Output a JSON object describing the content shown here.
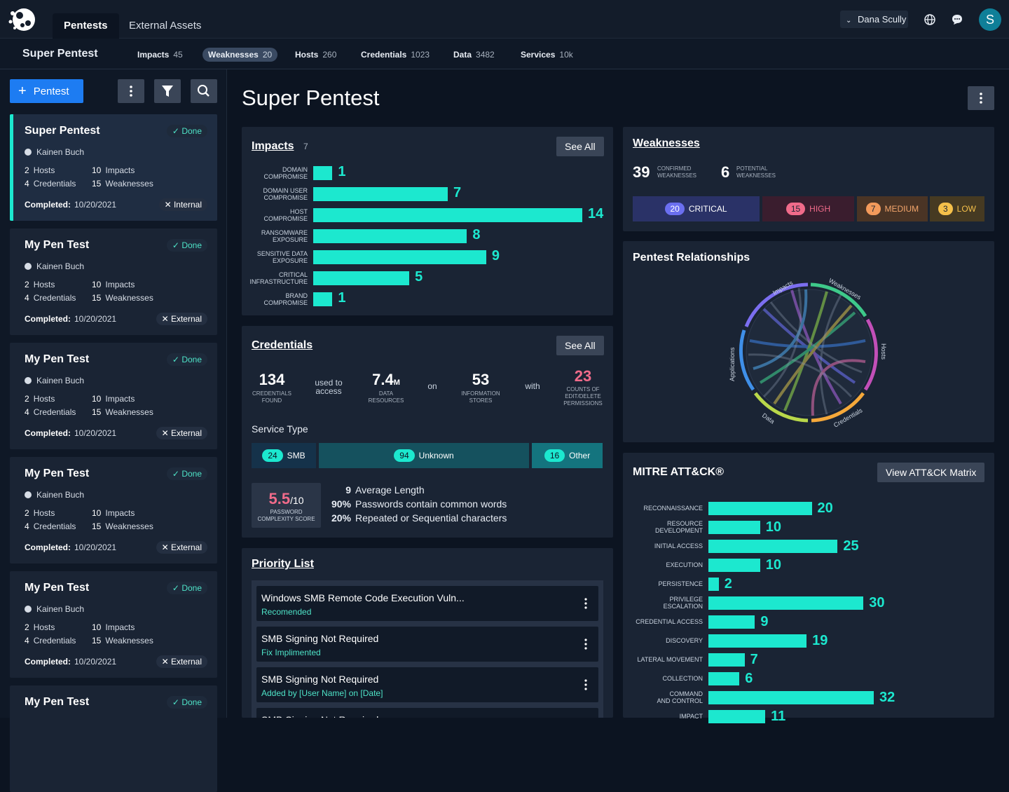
{
  "topbar": {
    "tabs": [
      {
        "label": "Pentests",
        "active": true
      },
      {
        "label": "External Assets",
        "active": false
      }
    ],
    "user": "Dana Scully",
    "avatar_initial": "S"
  },
  "subbar": {
    "title": "Super Pentest",
    "stats": [
      {
        "label": "Impacts",
        "value": "45"
      },
      {
        "label": "Weaknesses",
        "value": "20",
        "active": true
      },
      {
        "label": "Hosts",
        "value": "260"
      },
      {
        "label": "Credentials",
        "value": "1023"
      },
      {
        "label": "Data",
        "value": "3482"
      },
      {
        "label": "Services",
        "value": "10k"
      }
    ]
  },
  "sidebar": {
    "new_label": "Pentest",
    "cards": [
      {
        "title": "Super Pentest",
        "status": "Done",
        "owner": "Kainen Buch",
        "hosts": "2",
        "hosts_label": "Hosts",
        "impacts": "10",
        "impacts_label": "Impacts",
        "credentials": "4",
        "credentials_label": "Credentials",
        "weaknesses": "15",
        "weaknesses_label": "Weaknesses",
        "completed_label": "Completed:",
        "completed": "10/20/2021",
        "tag": "Internal"
      },
      {
        "title": "My Pen Test",
        "status": "Done",
        "owner": "Kainen Buch",
        "hosts": "2",
        "hosts_label": "Hosts",
        "impacts": "10",
        "impacts_label": "Impacts",
        "credentials": "4",
        "credentials_label": "Credentials",
        "weaknesses": "15",
        "weaknesses_label": "Weaknesses",
        "completed_label": "Completed:",
        "completed": "10/20/2021",
        "tag": "External"
      },
      {
        "title": "My Pen Test",
        "status": "Done",
        "owner": "Kainen Buch",
        "hosts": "2",
        "hosts_label": "Hosts",
        "impacts": "10",
        "impacts_label": "Impacts",
        "credentials": "4",
        "credentials_label": "Credentials",
        "weaknesses": "15",
        "weaknesses_label": "Weaknesses",
        "completed_label": "Completed:",
        "completed": "10/20/2021",
        "tag": "External"
      },
      {
        "title": "My Pen Test",
        "status": "Done",
        "owner": "Kainen Buch",
        "hosts": "2",
        "hosts_label": "Hosts",
        "impacts": "10",
        "impacts_label": "Impacts",
        "credentials": "4",
        "credentials_label": "Credentials",
        "weaknesses": "15",
        "weaknesses_label": "Weaknesses",
        "completed_label": "Completed:",
        "completed": "10/20/2021",
        "tag": "External"
      },
      {
        "title": "My Pen Test",
        "status": "Done",
        "owner": "Kainen Buch",
        "hosts": "2",
        "hosts_label": "Hosts",
        "impacts": "10",
        "impacts_label": "Impacts",
        "credentials": "4",
        "credentials_label": "Credentials",
        "weaknesses": "15",
        "weaknesses_label": "Weaknesses",
        "completed_label": "Completed:",
        "completed": "10/20/2021",
        "tag": "External"
      },
      {
        "title": "My Pen Test",
        "status": "Done"
      }
    ]
  },
  "main": {
    "title": "Super Pentest"
  },
  "impacts": {
    "title": "Impacts",
    "count": "7",
    "see_all": "See All",
    "max": 14,
    "items": [
      {
        "label": "DOMAIN\nCOMPROMISE",
        "value": 1
      },
      {
        "label": "DOMAIN USER\nCOMPROMISE",
        "value": 7
      },
      {
        "label": "HOST\nCOMPROMISE",
        "value": 14
      },
      {
        "label": "RANSOMWARE\nEXPOSURE",
        "value": 8
      },
      {
        "label": "SENSITIVE DATA\nEXPOSURE",
        "value": 9
      },
      {
        "label": "CRITICAL\nINFRASTRUCTURE",
        "value": 5
      },
      {
        "label": "BRAND\nCOMPROMISE",
        "value": 1
      }
    ]
  },
  "credentials": {
    "title": "Credentials",
    "see_all": "See All",
    "found": "134",
    "found_label": "CREDENTIALS\nFOUND",
    "used_to": "used to\naccess",
    "data": "7.4",
    "data_unit": "M",
    "data_label": "DATA\nRESOURCES",
    "on": "on",
    "stores": "53",
    "stores_label": "INFORMATION\nSTORES",
    "with": "with",
    "perms": "23",
    "perms_label": "COUNTS OF\nEDIT/DELETE\nPERMISSIONS",
    "service_type_label": "Service Type",
    "services": [
      {
        "count": "24",
        "label": "SMB"
      },
      {
        "count": "94",
        "label": "Unknown"
      },
      {
        "count": "16",
        "label": "Other"
      }
    ],
    "score": "5.5",
    "score_max": "/10",
    "score_label": "PASSWORD\nCOMPLEXITY SCORE",
    "pw_stats": [
      {
        "value": "9",
        "label": "Average Length"
      },
      {
        "value": "90%",
        "label": "Passwords contain common words"
      },
      {
        "value": "20%",
        "label": "Repeated or Sequential characters"
      }
    ]
  },
  "priority": {
    "title": "Priority List",
    "items": [
      {
        "title": "Windows SMB Remote Code Execution Vuln...",
        "status": "Recomended"
      },
      {
        "title": "SMB Signing Not Required",
        "status": "Fix Implimented"
      },
      {
        "title": "SMB Signing Not Required",
        "status": "Added by [User Name] on [Date]"
      },
      {
        "title": "SMB Signing Not Required",
        "status": ""
      }
    ]
  },
  "weaknesses": {
    "title": "Weaknesses",
    "confirmed": "39",
    "confirmed_label": "CONFIRMED\nWEAKNESSES",
    "potential": "6",
    "potential_label": "POTENTIAL\nWEAKNESSES",
    "severity": [
      {
        "count": "20",
        "label": "CRITICAL",
        "bg": "#2a3267",
        "pill": "#6b6ff0",
        "color": "#ffffff"
      },
      {
        "count": "15",
        "label": "HIGH",
        "bg": "#3a1d2e",
        "pill": "#f06b8a",
        "color": "#f06b8a"
      },
      {
        "count": "7",
        "label": "MEDIUM",
        "bg": "#4a3425",
        "pill": "#f39a5b",
        "color": "#f3a56b"
      },
      {
        "count": "3",
        "label": "LOW",
        "bg": "#463a22",
        "pill": "#f5c04a",
        "color": "#f5c04a"
      }
    ]
  },
  "relationships": {
    "title": "Pentest Relationships",
    "labels": [
      "Impacts",
      "Weaknesses",
      "Hosts",
      "Credentials",
      "Data",
      "Applications"
    ]
  },
  "mitre": {
    "title": "MITRE ATT&CK®",
    "button": "View ATT&CK Matrix",
    "max": 32,
    "items": [
      {
        "label": "RECONNAISSANCE",
        "value": 20
      },
      {
        "label": "RESOURCE\nDEVELOPMENT",
        "value": 10
      },
      {
        "label": "INITIAL ACCESS",
        "value": 25
      },
      {
        "label": "EXECUTION",
        "value": 10
      },
      {
        "label": "PERSISTENCE",
        "value": 2
      },
      {
        "label": "PRIVILEGE\nESCALATION",
        "value": 30
      },
      {
        "label": "CREDENTIAL ACCESS",
        "value": 9
      },
      {
        "label": "DISCOVERY",
        "value": 19
      },
      {
        "label": "LATERAL MOVEMENT",
        "value": 7
      },
      {
        "label": "COLLECTION",
        "value": 6
      },
      {
        "label": "COMMAND\nAND CONTROL",
        "value": 32
      },
      {
        "label": "IMPACT",
        "value": 11
      }
    ]
  }
}
